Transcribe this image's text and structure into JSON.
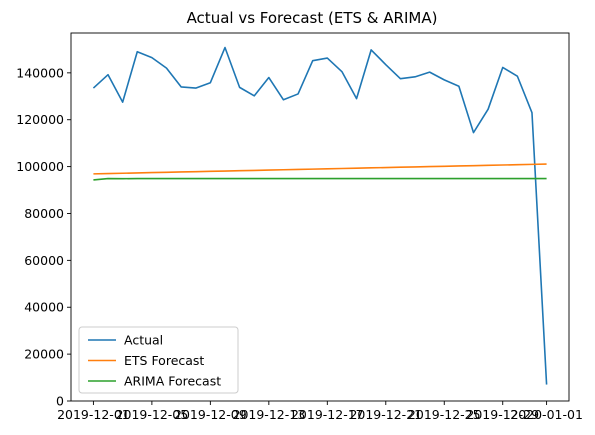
{
  "chart_data": {
    "type": "line",
    "title": "Actual vs Forecast (ETS & ARIMA)",
    "xlabel": "",
    "ylabel": "",
    "ylim": [
      0,
      157000
    ],
    "grid": false,
    "legend_placement": "lower-left",
    "x_tick_labels": [
      "2019-12-01",
      "2019-12-05",
      "2019-12-09",
      "2019-12-13",
      "2019-12-17",
      "2019-12-21",
      "2019-12-25",
      "2019-12-29",
      "2020-01-01"
    ],
    "y_ticks": [
      0,
      20000,
      40000,
      60000,
      80000,
      100000,
      120000,
      140000
    ],
    "y_tick_labels": [
      "0",
      "20000",
      "40000",
      "60000",
      "80000",
      "100000",
      "120000",
      "140000"
    ],
    "x_dates": [
      "2019-12-01",
      "2019-12-02",
      "2019-12-03",
      "2019-12-04",
      "2019-12-05",
      "2019-12-06",
      "2019-12-07",
      "2019-12-08",
      "2019-12-09",
      "2019-12-10",
      "2019-12-11",
      "2019-12-12",
      "2019-12-13",
      "2019-12-14",
      "2019-12-15",
      "2019-12-16",
      "2019-12-17",
      "2019-12-18",
      "2019-12-19",
      "2019-12-20",
      "2019-12-21",
      "2019-12-22",
      "2019-12-23",
      "2019-12-24",
      "2019-12-25",
      "2019-12-26",
      "2019-12-27",
      "2019-12-28",
      "2019-12-29",
      "2019-12-30",
      "2019-12-31",
      "2020-01-01"
    ],
    "series": [
      {
        "name": "Actual",
        "color": "#1f77b4",
        "values": [
          133500,
          139200,
          127500,
          149000,
          146500,
          142000,
          134000,
          133500,
          135800,
          150800,
          133800,
          130200,
          138000,
          128500,
          131000,
          145200,
          146300,
          140500,
          129000,
          149800,
          143500,
          137500,
          138300,
          140300,
          137000,
          134300,
          114500,
          124500,
          142300,
          138600,
          123000,
          7000
        ]
      },
      {
        "name": "ETS Forecast",
        "color": "#ff7f0e",
        "values": [
          96900,
          97035,
          97170,
          97305,
          97440,
          97575,
          97710,
          97845,
          97980,
          98115,
          98250,
          98385,
          98520,
          98655,
          98790,
          98925,
          99060,
          99195,
          99330,
          99465,
          99600,
          99735,
          99870,
          100005,
          100140,
          100275,
          100410,
          100545,
          100680,
          100815,
          100950,
          101085
        ]
      },
      {
        "name": "ARIMA Forecast",
        "color": "#2ca02c",
        "values": [
          94300,
          94900,
          94850,
          94900,
          94900,
          94900,
          94900,
          94900,
          94900,
          94900,
          94900,
          94900,
          94900,
          94900,
          94900,
          94900,
          94900,
          94900,
          94900,
          94900,
          94900,
          94900,
          94900,
          94900,
          94900,
          94900,
          94900,
          94900,
          94900,
          94900,
          94900,
          94900
        ]
      }
    ]
  }
}
